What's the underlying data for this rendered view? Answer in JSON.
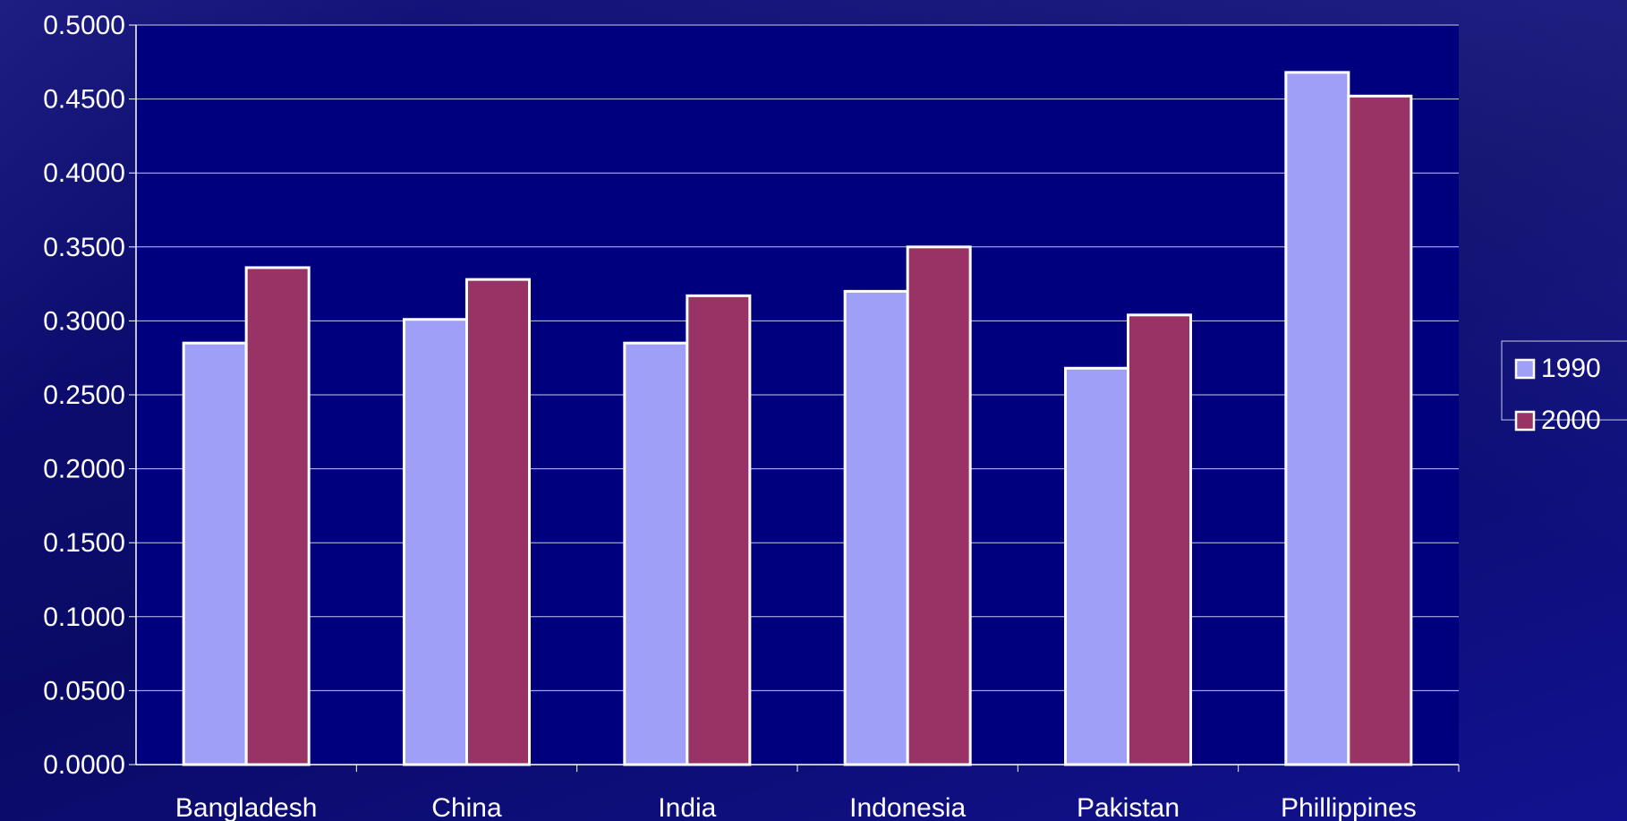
{
  "chart_data": {
    "type": "bar",
    "categories": [
      "Bangladesh",
      "China",
      "India",
      "Indonesia",
      "Pakistan",
      "Phillippines"
    ],
    "series": [
      {
        "name": "1990",
        "values": [
          0.285,
          0.301,
          0.285,
          0.32,
          0.268,
          0.468
        ],
        "color": "#9f9ff7"
      },
      {
        "name": "2000",
        "values": [
          0.336,
          0.328,
          0.317,
          0.35,
          0.304,
          0.452
        ],
        "color": "#993366"
      }
    ],
    "y_ticks": [
      "0.0000",
      "0.0500",
      "0.1000",
      "0.1500",
      "0.2000",
      "0.2500",
      "0.3000",
      "0.3500",
      "0.4000",
      "0.4500",
      "0.5000"
    ],
    "ylim": [
      0,
      0.5
    ],
    "grid": true,
    "legend_position": "right",
    "colors": {
      "plot_background": "#00007f",
      "grid": "#c8c8e8",
      "bar_border": "#ffffff"
    }
  }
}
